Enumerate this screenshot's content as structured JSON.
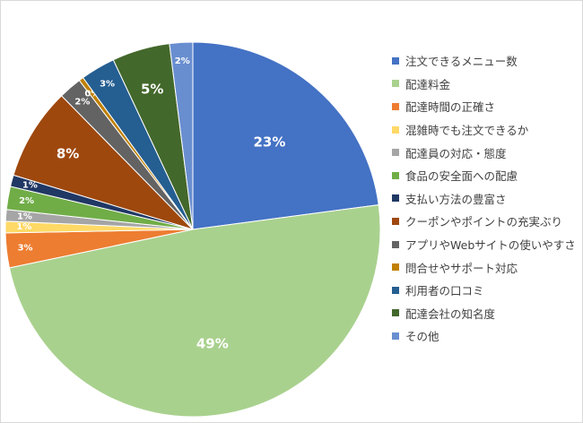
{
  "chart_data": {
    "type": "pie",
    "legend_position": "right",
    "slices": [
      {
        "label": "注文できるメニュー数",
        "value": 23,
        "data_label": "23%",
        "color": "#4472C4",
        "label_color": "#ffffff"
      },
      {
        "label": "配達料金",
        "value": 49,
        "data_label": "49%",
        "color": "#A9D18E",
        "label_color": "#ffffff"
      },
      {
        "label": "配達時間の正確さ",
        "value": 3,
        "data_label": "3%",
        "color": "#ED7D31",
        "label_color": "#ffffff"
      },
      {
        "label": "混雑時でも注文できるか",
        "value": 1,
        "data_label": "1%",
        "color": "#FFD966",
        "label_color": "#ffffff"
      },
      {
        "label": "配達員の対応・態度",
        "value": 1,
        "data_label": "1%",
        "color": "#A5A5A5",
        "label_color": "#ffffff"
      },
      {
        "label": "食品の安全面への配慮",
        "value": 2,
        "data_label": "2%",
        "color": "#70AD47",
        "label_color": "#ffffff"
      },
      {
        "label": "支払い方法の豊富さ",
        "value": 1,
        "data_label": "1%",
        "color": "#203864",
        "label_color": "#ffffff"
      },
      {
        "label": "クーポンやポイントの充実ぶり",
        "value": 8,
        "data_label": "8%",
        "color": "#9E480E",
        "label_color": "#ffffff"
      },
      {
        "label": "アプリやWebサイトの使いやすさ",
        "value": 2,
        "data_label": "2%",
        "color": "#636363",
        "label_color": "#ffffff"
      },
      {
        "label": "問合せやサポート対応",
        "value": 0.4,
        "data_label": "0%",
        "color": "#C08000",
        "label_color": "#ffffff"
      },
      {
        "label": "利用者の口コミ",
        "value": 3,
        "data_label": "3%",
        "color": "#255E91",
        "label_color": "#ffffff"
      },
      {
        "label": "配達会社の知名度",
        "value": 5,
        "data_label": "5%",
        "color": "#43682B",
        "label_color": "#ffffff"
      },
      {
        "label": "その他",
        "value": 2,
        "data_label": "2%",
        "color": "#698ED0",
        "label_color": "#ffffff"
      }
    ]
  }
}
